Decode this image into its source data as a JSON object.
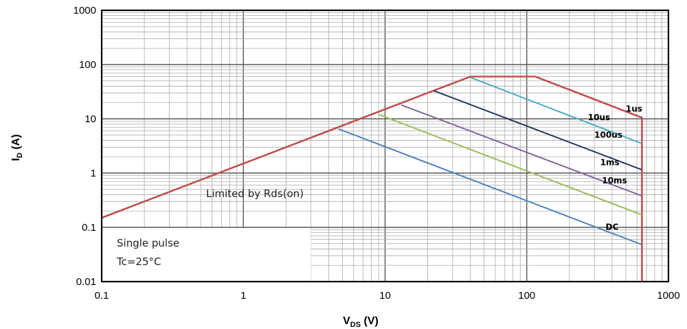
{
  "chart_data": {
    "type": "line",
    "title": "",
    "xlabel": {
      "main": "V",
      "sub": "DS",
      "unit": " (V)"
    },
    "ylabel": {
      "main": "I",
      "sub": "D",
      "unit": " (A)"
    },
    "x_scale": "log",
    "y_scale": "log",
    "xlim": [
      0.1,
      1000
    ],
    "ylim": [
      0.01,
      1000
    ],
    "x_ticks": [
      "0.1",
      "1",
      "10",
      "100",
      "1000"
    ],
    "y_ticks": [
      "0.01",
      "0.1",
      "1",
      "10",
      "100",
      "1000"
    ],
    "grid": true,
    "series": [
      {
        "name": "",
        "role": "envelope",
        "color": "#c0504d",
        "points": [
          [
            0.1,
            0.15
          ],
          [
            40,
            60
          ],
          [
            115,
            60
          ],
          [
            650,
            10.5
          ],
          [
            650,
            0.01
          ]
        ]
      },
      {
        "name": "1us",
        "color": "#c0504d",
        "points": [
          [
            115,
            60
          ],
          [
            650,
            10.5
          ]
        ]
      },
      {
        "name": "10us",
        "color": "#4bacc6",
        "points": [
          [
            40,
            58
          ],
          [
            650,
            3.5
          ]
        ]
      },
      {
        "name": "100us",
        "color": "#1f3864",
        "points": [
          [
            22,
            33
          ],
          [
            650,
            1.15
          ]
        ]
      },
      {
        "name": "1ms",
        "color": "#8064a2",
        "points": [
          [
            13,
            18
          ],
          [
            650,
            0.38
          ]
        ]
      },
      {
        "name": "10ms",
        "color": "#9bbb59",
        "points": [
          [
            9,
            12
          ],
          [
            650,
            0.17
          ]
        ]
      },
      {
        "name": "DC",
        "color": "#4f81bd",
        "points": [
          [
            4.7,
            6.5
          ],
          [
            650,
            0.048
          ]
        ]
      }
    ],
    "curve_labels": [
      {
        "text": "1us",
        "x": 500,
        "y": 13.5
      },
      {
        "text": "10us",
        "x": 270,
        "y": 9.5
      },
      {
        "text": "100us",
        "x": 300,
        "y": 4.5
      },
      {
        "text": "1ms",
        "x": 330,
        "y": 1.4
      },
      {
        "text": "10ms",
        "x": 340,
        "y": 0.65
      },
      {
        "text": "DC",
        "x": 360,
        "y": 0.09
      }
    ],
    "annotations": {
      "limited": "Limited by Rds(on)",
      "conditions": [
        "Single pulse",
        "Tc=25°C"
      ]
    }
  }
}
